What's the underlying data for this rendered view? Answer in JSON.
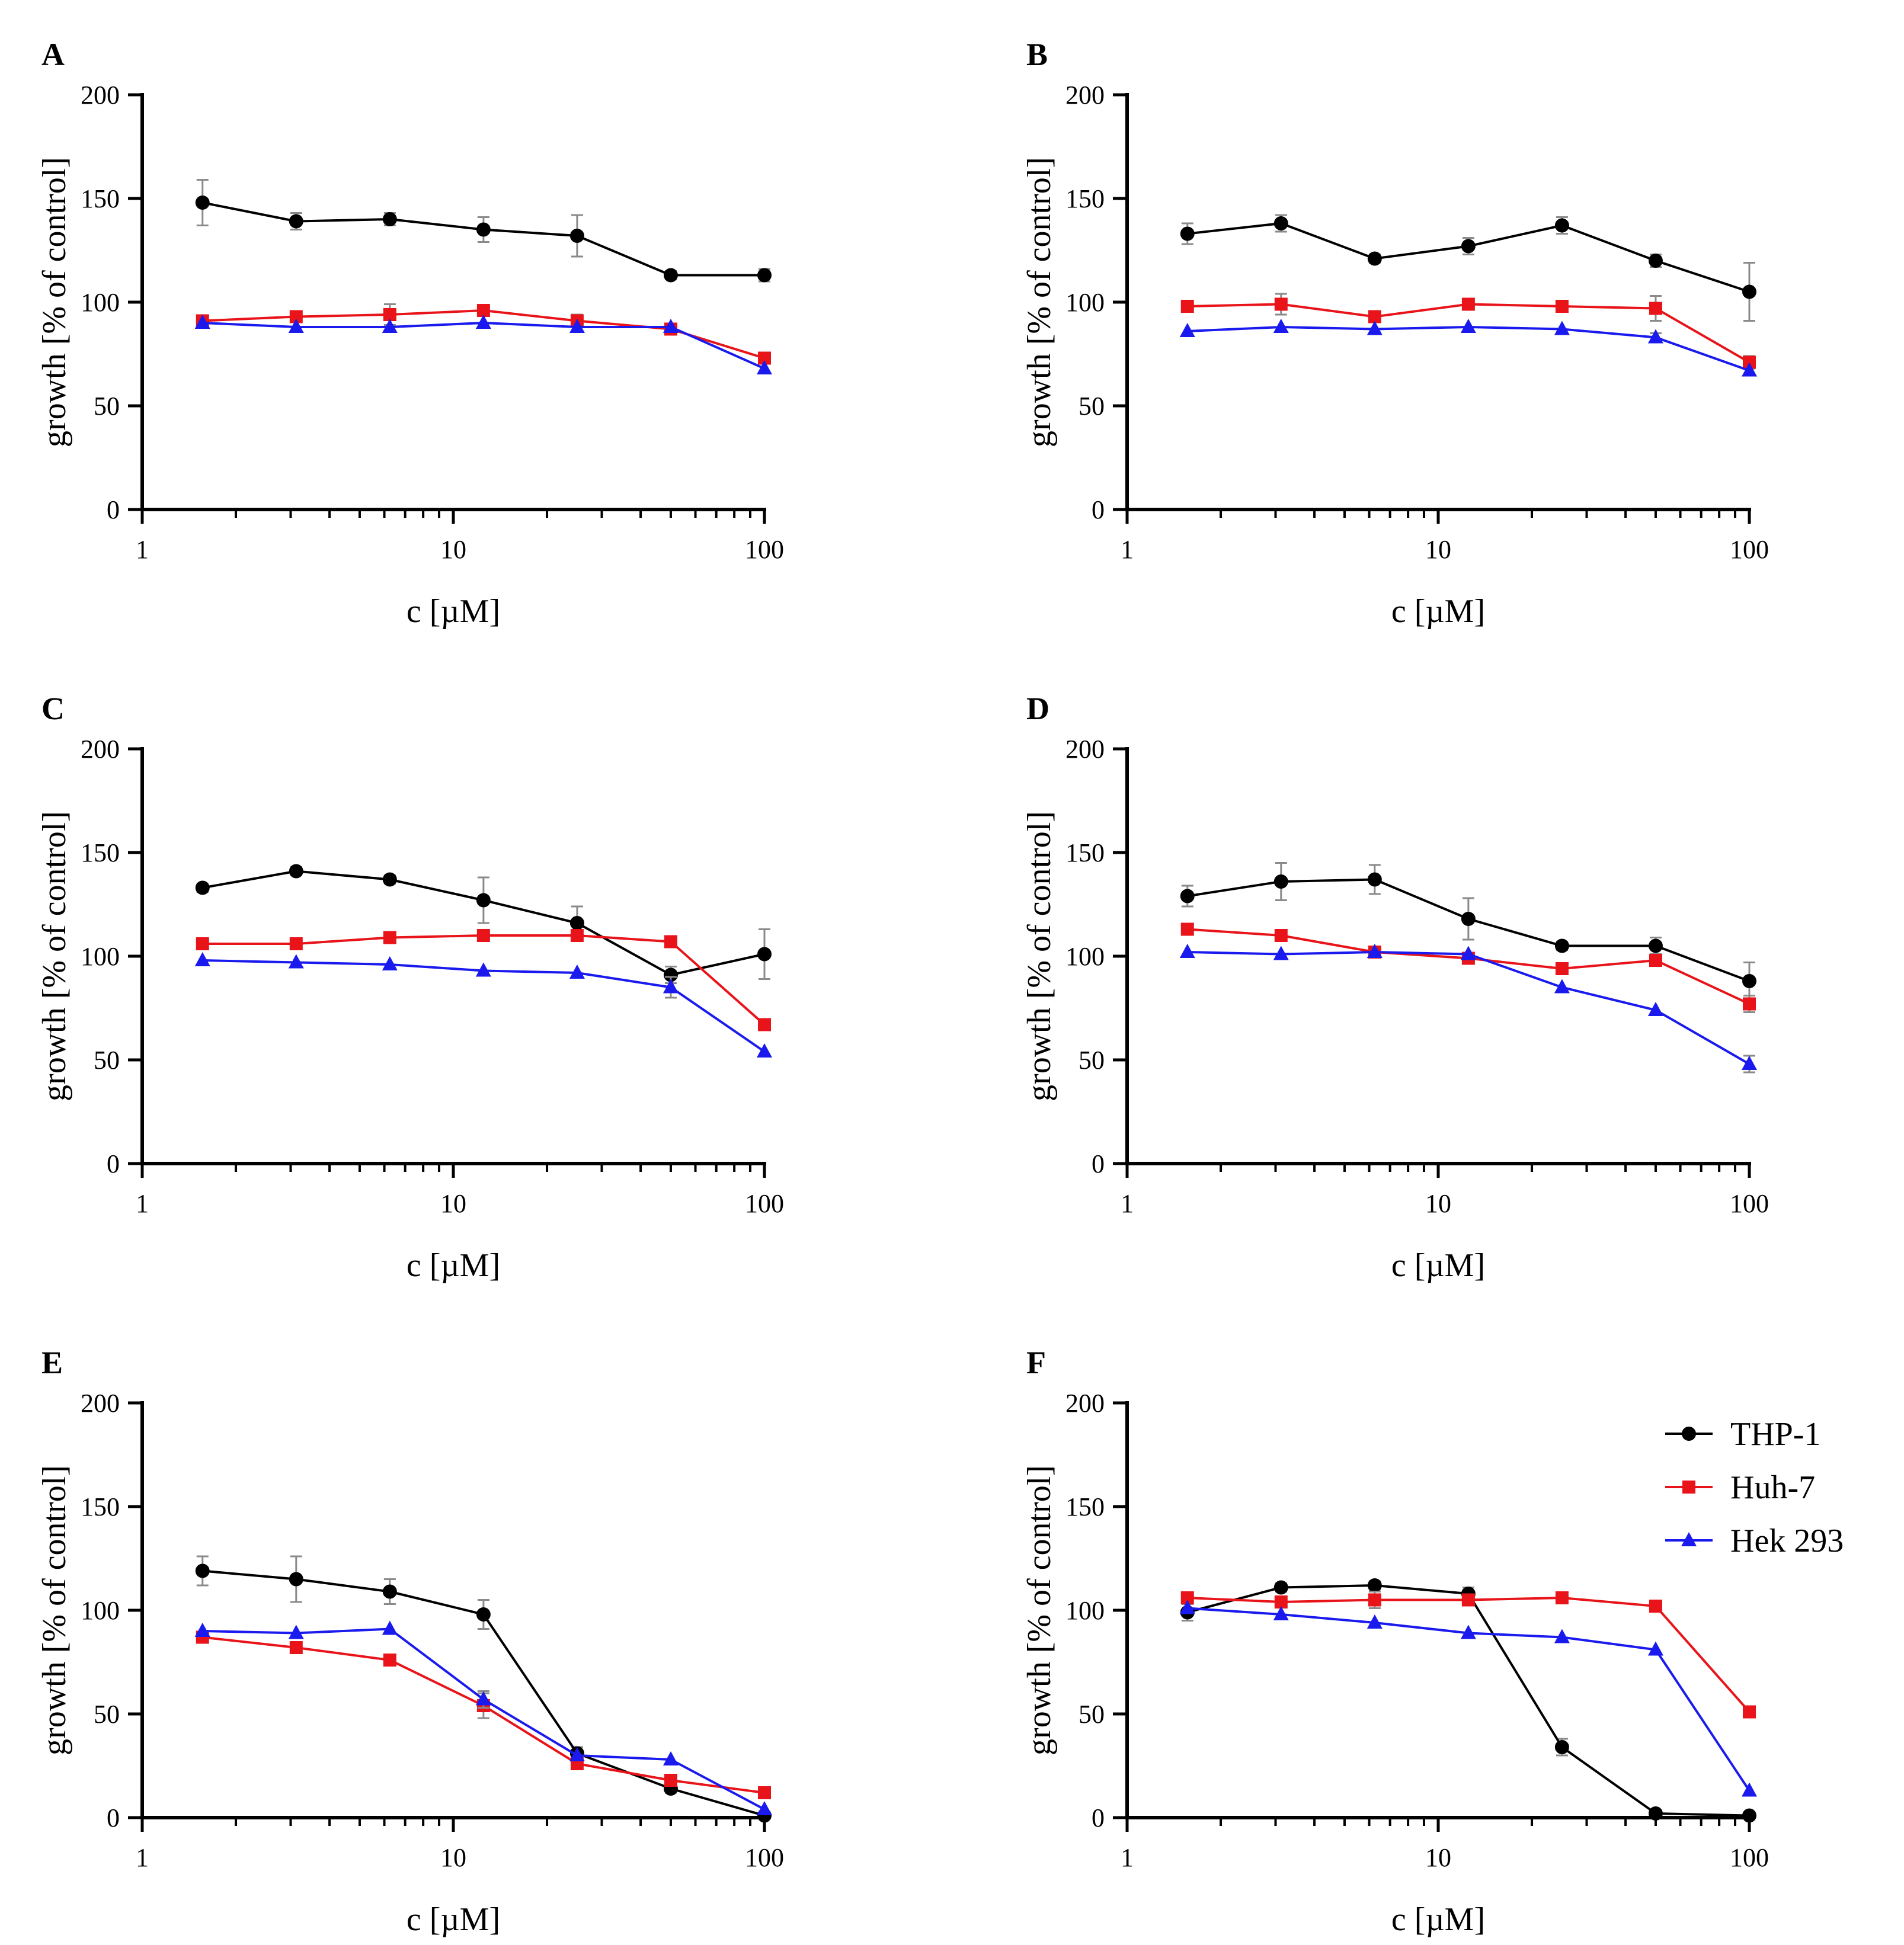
{
  "figure": {
    "legend": {
      "entries": [
        "THP-1",
        "Huh-7",
        "Hek 293"
      ],
      "colors": [
        "#000000",
        "#e8141a",
        "#1a1aee"
      ],
      "markers": [
        "circle",
        "square",
        "triangle"
      ]
    }
  },
  "chart_data": [
    {
      "panel": "A",
      "type": "line",
      "xscale": "log",
      "xlim": [
        1,
        100
      ],
      "ylim": [
        0,
        200
      ],
      "xlabel": "c [µM]",
      "ylabel": "growth [% of control]",
      "xticks": [
        1,
        10,
        100
      ],
      "xtick_labels": [
        "1",
        "10",
        "100"
      ],
      "yticks": [
        0,
        50,
        100,
        150,
        200
      ],
      "ytick_labels": [
        "0",
        "50",
        "100",
        "150",
        "200"
      ],
      "x": [
        1.5625,
        3.125,
        6.25,
        12.5,
        25,
        50,
        100
      ],
      "series": [
        {
          "name": "THP-1",
          "values": [
            148,
            139,
            140,
            135,
            132,
            113,
            113
          ],
          "err": [
            11,
            4,
            3,
            6,
            10,
            2,
            3
          ]
        },
        {
          "name": "Huh-7",
          "values": [
            91,
            93,
            94,
            96,
            91,
            87,
            73
          ],
          "err": [
            2,
            2,
            5,
            2,
            3,
            2,
            2
          ]
        },
        {
          "name": "Hek 293",
          "values": [
            90,
            88,
            88,
            90,
            88,
            88,
            68
          ],
          "err": [
            1,
            1,
            1,
            1,
            1,
            1,
            1
          ]
        }
      ]
    },
    {
      "panel": "B",
      "type": "line",
      "xscale": "log",
      "xlim": [
        1,
        100
      ],
      "ylim": [
        0,
        200
      ],
      "xlabel": "c [µM]",
      "ylabel": "growth [% of control]",
      "xticks": [
        1,
        10,
        100
      ],
      "xtick_labels": [
        "1",
        "10",
        "100"
      ],
      "yticks": [
        0,
        50,
        100,
        150,
        200
      ],
      "ytick_labels": [
        "0",
        "50",
        "100",
        "150",
        "200"
      ],
      "x": [
        1.5625,
        3.125,
        6.25,
        12.5,
        25,
        50,
        100
      ],
      "series": [
        {
          "name": "THP-1",
          "values": [
            133,
            138,
            121,
            127,
            137,
            120,
            105
          ],
          "err": [
            5,
            4,
            2,
            4,
            4,
            3,
            14
          ]
        },
        {
          "name": "Huh-7",
          "values": [
            98,
            99,
            93,
            99,
            98,
            97,
            71
          ],
          "err": [
            2,
            5,
            2,
            2,
            2,
            6,
            3
          ]
        },
        {
          "name": "Hek 293",
          "values": [
            86,
            88,
            87,
            88,
            87,
            83,
            67
          ],
          "err": [
            1,
            1,
            1,
            1,
            1,
            2,
            1
          ]
        }
      ]
    },
    {
      "panel": "C",
      "type": "line",
      "xscale": "log",
      "xlim": [
        1,
        100
      ],
      "ylim": [
        0,
        200
      ],
      "xlabel": "c [µM]",
      "ylabel": "growth [% of control]",
      "xticks": [
        1,
        10,
        100
      ],
      "xtick_labels": [
        "1",
        "10",
        "100"
      ],
      "yticks": [
        0,
        50,
        100,
        150,
        200
      ],
      "ytick_labels": [
        "0",
        "50",
        "100",
        "150",
        "200"
      ],
      "x": [
        1.5625,
        3.125,
        6.25,
        12.5,
        25,
        50,
        100
      ],
      "series": [
        {
          "name": "THP-1",
          "values": [
            133,
            141,
            137,
            127,
            116,
            91,
            101
          ],
          "err": [
            2,
            2,
            2,
            11,
            8,
            4,
            12
          ]
        },
        {
          "name": "Huh-7",
          "values": [
            106,
            106,
            109,
            110,
            110,
            107,
            67
          ],
          "err": [
            2,
            2,
            2,
            2,
            2,
            2,
            2
          ]
        },
        {
          "name": "Hek 293",
          "values": [
            98,
            97,
            96,
            93,
            92,
            85,
            54
          ],
          "err": [
            1,
            1,
            1,
            1,
            1,
            5,
            1
          ]
        }
      ]
    },
    {
      "panel": "D",
      "type": "line",
      "xscale": "log",
      "xlim": [
        1,
        100
      ],
      "ylim": [
        0,
        200
      ],
      "xlabel": "c [µM]",
      "ylabel": "growth [% of control]",
      "xticks": [
        1,
        10,
        100
      ],
      "xtick_labels": [
        "1",
        "10",
        "100"
      ],
      "yticks": [
        0,
        50,
        100,
        150,
        200
      ],
      "ytick_labels": [
        "0",
        "50",
        "100",
        "150",
        "200"
      ],
      "x": [
        1.5625,
        3.125,
        6.25,
        12.5,
        25,
        50,
        100
      ],
      "series": [
        {
          "name": "THP-1",
          "values": [
            129,
            136,
            137,
            118,
            105,
            105,
            88
          ],
          "err": [
            5,
            9,
            7,
            10,
            2,
            4,
            9
          ]
        },
        {
          "name": "Huh-7",
          "values": [
            113,
            110,
            102,
            99,
            94,
            98,
            77
          ],
          "err": [
            2,
            2,
            2,
            2,
            2,
            2,
            4
          ]
        },
        {
          "name": "Hek 293",
          "values": [
            102,
            101,
            102,
            101,
            85,
            74,
            48
          ],
          "err": [
            1,
            1,
            1,
            1,
            1,
            1,
            4
          ]
        }
      ]
    },
    {
      "panel": "E",
      "type": "line",
      "xscale": "log",
      "xlim": [
        1,
        100
      ],
      "ylim": [
        0,
        200
      ],
      "xlabel": "c [µM]",
      "ylabel": "growth [% of control]",
      "xticks": [
        1,
        10,
        100
      ],
      "xtick_labels": [
        "1",
        "10",
        "100"
      ],
      "yticks": [
        0,
        50,
        100,
        150,
        200
      ],
      "ytick_labels": [
        "0",
        "50",
        "100",
        "150",
        "200"
      ],
      "x": [
        1.5625,
        3.125,
        6.25,
        12.5,
        25,
        50,
        100
      ],
      "series": [
        {
          "name": "THP-1",
          "values": [
            119,
            115,
            109,
            98,
            31,
            14,
            1
          ],
          "err": [
            7,
            11,
            6,
            7,
            3,
            2,
            2
          ]
        },
        {
          "name": "Huh-7",
          "values": [
            87,
            82,
            76,
            54,
            26,
            18,
            12
          ],
          "err": [
            2,
            2,
            2,
            6,
            2,
            2,
            2
          ]
        },
        {
          "name": "Hek 293",
          "values": [
            90,
            89,
            91,
            57,
            30,
            28,
            4
          ],
          "err": [
            1,
            1,
            1,
            4,
            1,
            1,
            1
          ]
        }
      ]
    },
    {
      "panel": "F",
      "type": "line",
      "xscale": "log",
      "xlim": [
        1,
        100
      ],
      "ylim": [
        0,
        200
      ],
      "xlabel": "c [µM]",
      "ylabel": "growth [% of control]",
      "xticks": [
        1,
        10,
        100
      ],
      "xtick_labels": [
        "1",
        "10",
        "100"
      ],
      "yticks": [
        0,
        50,
        100,
        150,
        200
      ],
      "ytick_labels": [
        "0",
        "50",
        "100",
        "150",
        "200"
      ],
      "x": [
        1.5625,
        3.125,
        6.25,
        12.5,
        25,
        50,
        100
      ],
      "legend": true,
      "legend_position": "top-right",
      "series": [
        {
          "name": "THP-1",
          "values": [
            99,
            111,
            112,
            108,
            34,
            2,
            1
          ],
          "err": [
            4,
            2,
            2,
            3,
            4,
            1,
            1
          ]
        },
        {
          "name": "Huh-7",
          "values": [
            106,
            104,
            105,
            105,
            106,
            102,
            51
          ],
          "err": [
            2,
            2,
            4,
            2,
            2,
            2,
            2
          ]
        },
        {
          "name": "Hek 293",
          "values": [
            101,
            98,
            94,
            89,
            87,
            81,
            13
          ],
          "err": [
            1,
            1,
            1,
            1,
            1,
            1,
            1
          ]
        }
      ]
    }
  ]
}
